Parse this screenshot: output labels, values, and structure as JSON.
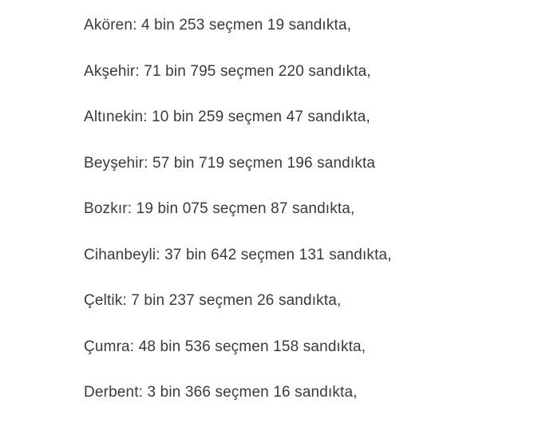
{
  "page": {
    "background_color": "#ffffff",
    "text_color": "#3a3a3a"
  },
  "article": {
    "lines": [
      "Akören: 4 bin 253 seçmen 19 sandıkta,",
      "Akşehir: 71 bin 795 seçmen 220 sandıkta,",
      "Altınekin: 10 bin 259 seçmen 47 sandıkta,",
      "Beyşehir: 57 bin 719 seçmen 196 sandıkta",
      "Bozkır: 19 bin 075 seçmen 87 sandıkta,",
      "Cihanbeyli: 37 bin 642 seçmen 131 sandıkta,",
      "Çeltik: 7 bin 237 seçmen 26 sandıkta,",
      "Çumra: 48 bin 536 seçmen 158 sandıkta,",
      "Derbent: 3 bin 366 seçmen 16 sandıkta,"
    ],
    "districts": [
      {
        "district": "Akören",
        "voters": "4 bin 253",
        "ballot_boxes": "19"
      },
      {
        "district": "Akşehir",
        "voters": "71 bin 795",
        "ballot_boxes": "220"
      },
      {
        "district": "Altınekin",
        "voters": "10 bin 259",
        "ballot_boxes": "47"
      },
      {
        "district": "Beyşehir",
        "voters": "57 bin 719",
        "ballot_boxes": "196"
      },
      {
        "district": "Bozkır",
        "voters": "19 bin 075",
        "ballot_boxes": "87"
      },
      {
        "district": "Cihanbeyli",
        "voters": "37 bin 642",
        "ballot_boxes": "131"
      },
      {
        "district": "Çeltik",
        "voters": "7 bin 237",
        "ballot_boxes": "26"
      },
      {
        "district": "Çumra",
        "voters": "48 bin 536",
        "ballot_boxes": "158"
      },
      {
        "district": "Derbent",
        "voters": "3 bin 366",
        "ballot_boxes": "16"
      }
    ]
  }
}
